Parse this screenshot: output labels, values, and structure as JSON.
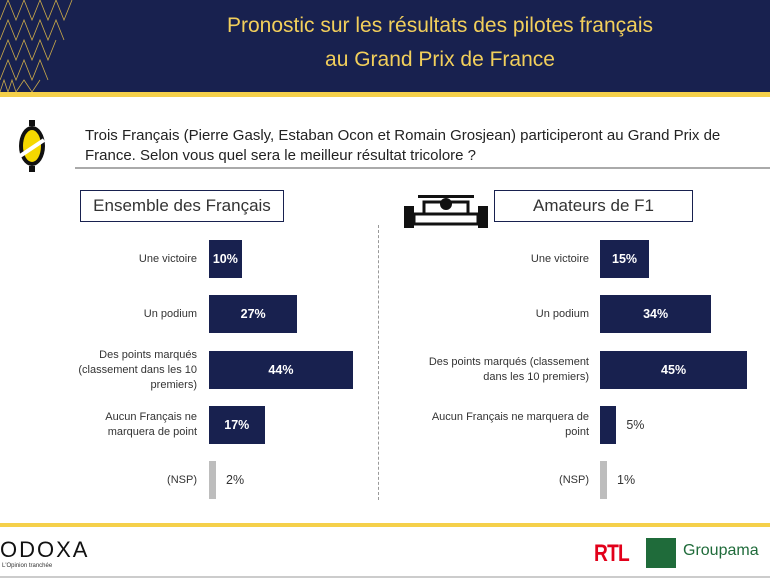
{
  "header": {
    "title_line1": "Pronostic sur les résultats des pilotes français",
    "title_line2": "au Grand Prix de France"
  },
  "question": "Trois Français (Pierre Gasly, Estaban Ocon et Romain Grosjean) participeront au Grand Prix de France. Selon vous quel sera le meilleur résultat tricolore ?",
  "footer": {
    "brand": "ODOXA",
    "tagline": "L'Opinion tranchée",
    "partner1": "RTL",
    "partner2": "Groupama"
  },
  "colors": {
    "navy": "#18214f",
    "yellow": "#f5d04a",
    "gray": "#bdbdbd"
  },
  "chart_data": [
    {
      "type": "bar",
      "orientation": "horizontal",
      "title": "Ensemble des Français",
      "categories": [
        "Une victoire",
        "Un podium",
        "Des points marqués (classement dans les 10 premiers)",
        "Aucun Français ne marquera de point",
        "(NSP)"
      ],
      "values": [
        10,
        27,
        44,
        17,
        2
      ],
      "labels": [
        "10%",
        "27%",
        "44%",
        "17%",
        "2%"
      ],
      "unit": "%"
    },
    {
      "type": "bar",
      "orientation": "horizontal",
      "title": "Amateurs de F1",
      "categories": [
        "Une victoire",
        "Un podium",
        "Des points marqués (classement dans les 10 premiers)",
        "Aucun Français ne marquera de point",
        "(NSP)"
      ],
      "values": [
        15,
        34,
        45,
        5,
        1
      ],
      "labels": [
        "15%",
        "34%",
        "45%",
        "5%",
        "1%"
      ],
      "unit": "%"
    }
  ]
}
